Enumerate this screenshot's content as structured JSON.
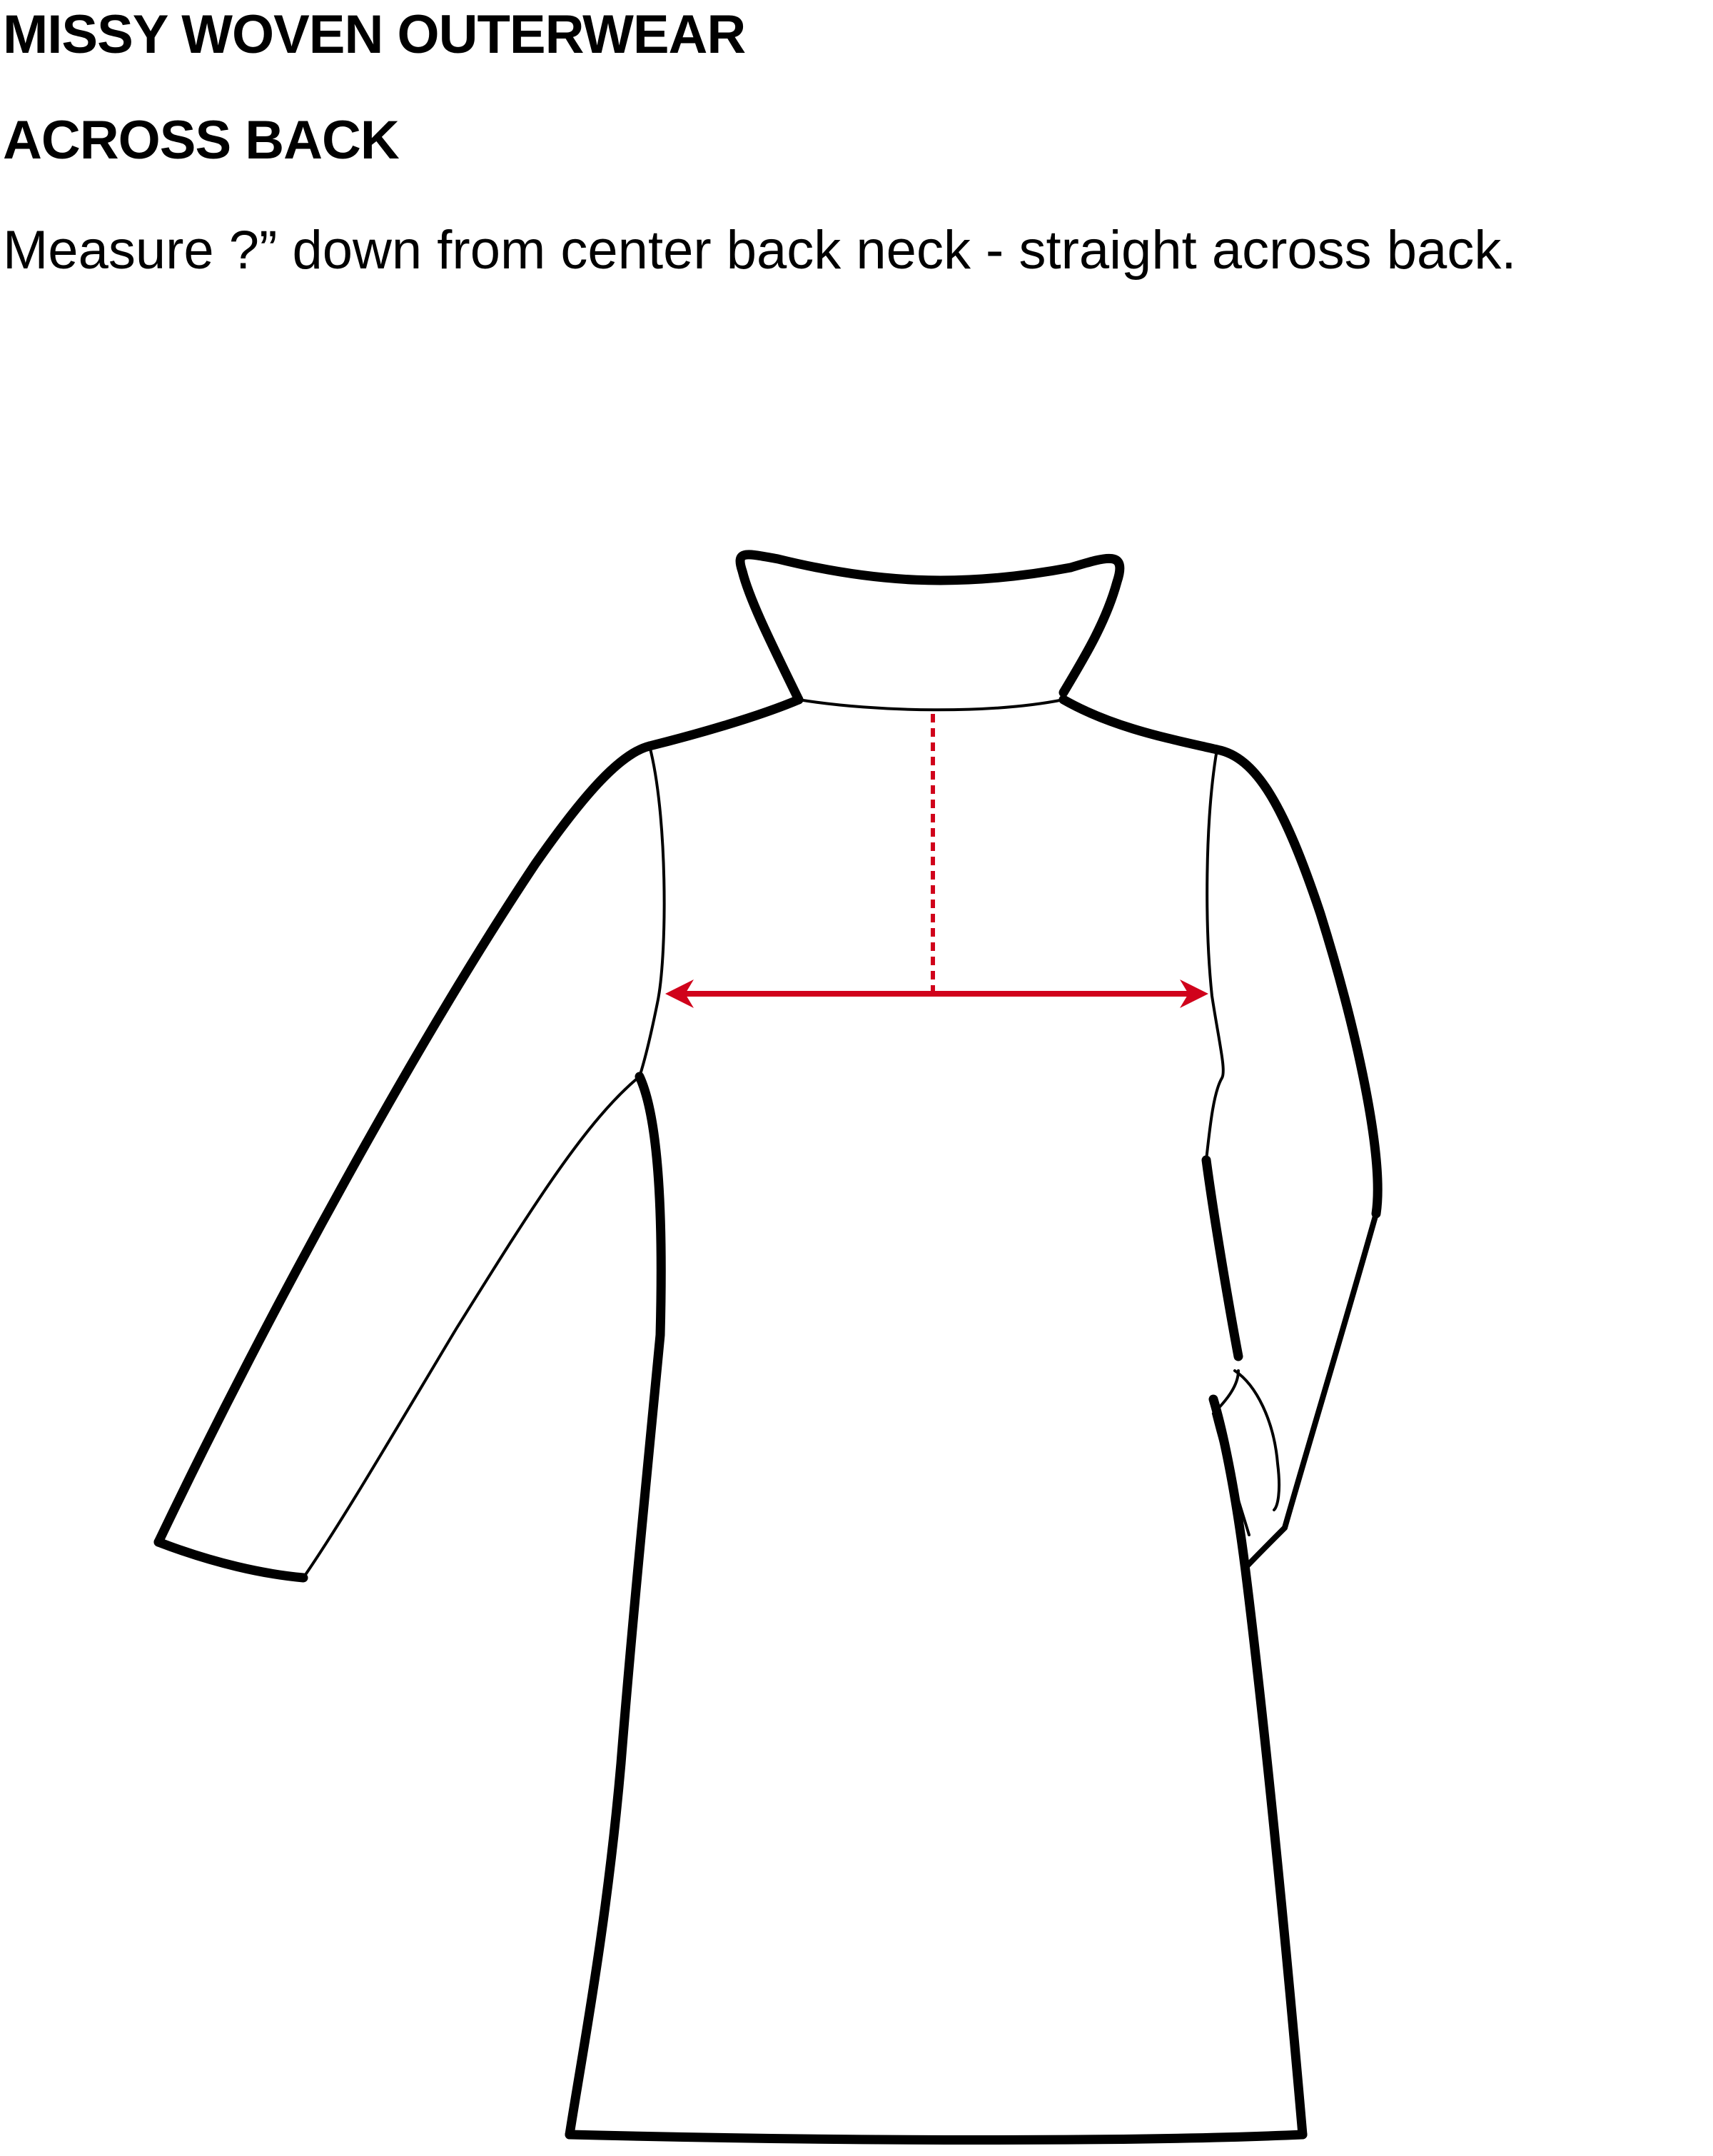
{
  "header": {
    "category": "MISSY WOVEN OUTERWEAR",
    "measurement_name": "ACROSS BACK",
    "instruction": "Measure ?” down from center back neck - straight across back."
  },
  "diagram": {
    "garment": "coat-back-view",
    "outline_color": "#000000",
    "measure_color": "#d0021b"
  }
}
